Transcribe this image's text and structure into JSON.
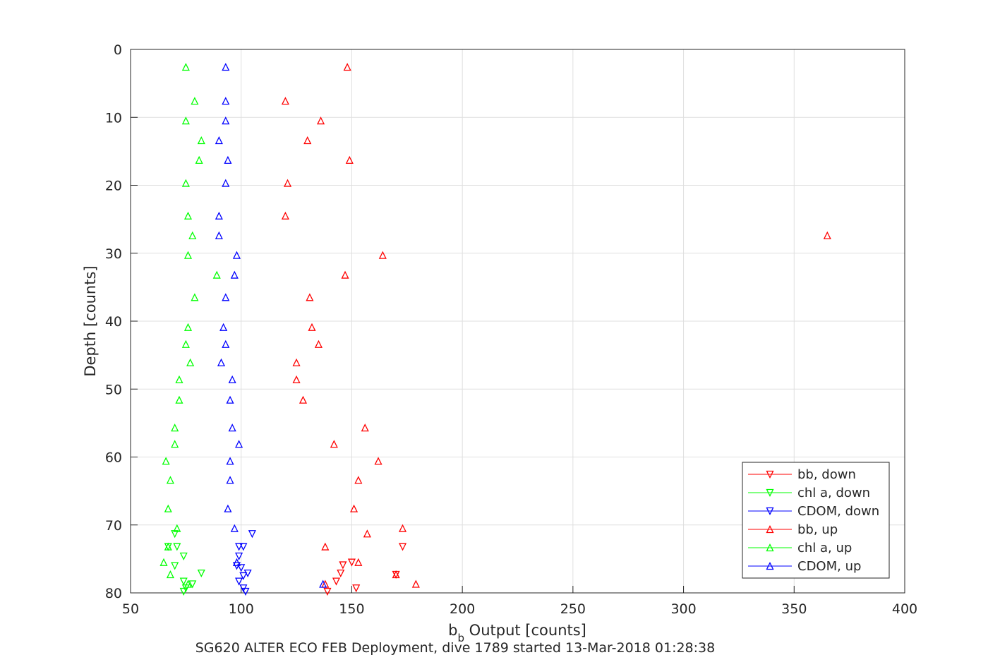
{
  "chart_data": {
    "type": "scatter",
    "title": "",
    "xlabel": "b",
    "xlabel_sub": "b",
    "xlabel_rest": " Output [counts]",
    "ylabel": "Depth [counts]",
    "caption": "SG620 ALTER ECO FEB Deployment, dive 1789 started 13-Mar-2018 01:28:38",
    "xlim": [
      50,
      400
    ],
    "ylim": [
      0,
      80
    ],
    "y_reversed": true,
    "grid": true,
    "legend_position": "bottom-right",
    "x_ticks": [
      "50",
      "100",
      "150",
      "200",
      "250",
      "300",
      "350",
      "400"
    ],
    "y_ticks": [
      "0",
      "10",
      "20",
      "30",
      "40",
      "50",
      "60",
      "70",
      "80"
    ],
    "series": [
      {
        "name": "bb, down",
        "color": "#ff0000",
        "marker": "triangle-down",
        "points": [
          [
            173,
            73.2
          ],
          [
            150,
            75.5
          ],
          [
            146,
            75.9
          ],
          [
            145,
            77.1
          ],
          [
            170,
            77.3
          ],
          [
            143,
            78.3
          ],
          [
            152,
            79.3
          ],
          [
            139,
            79.8
          ]
        ]
      },
      {
        "name": "chl a, down",
        "color": "#00ff00",
        "marker": "triangle-down",
        "points": [
          [
            70,
            71.3
          ],
          [
            71,
            73.2
          ],
          [
            67,
            73.2
          ],
          [
            74,
            74.6
          ],
          [
            70,
            76.0
          ],
          [
            82,
            77.1
          ],
          [
            74,
            78.3
          ],
          [
            78,
            78.7
          ],
          [
            75,
            79.3
          ],
          [
            74,
            79.8
          ]
        ]
      },
      {
        "name": "CDOM, down",
        "color": "#0000ff",
        "marker": "triangle-down",
        "points": [
          [
            105,
            71.3
          ],
          [
            99,
            73.2
          ],
          [
            101,
            73.2
          ],
          [
            99,
            74.6
          ],
          [
            98,
            76.0
          ],
          [
            100,
            76.3
          ],
          [
            103,
            77.1
          ],
          [
            101,
            77.5
          ],
          [
            99,
            78.3
          ],
          [
            101,
            79.3
          ],
          [
            102,
            79.8
          ]
        ]
      },
      {
        "name": "bb, up",
        "color": "#ff0000",
        "marker": "triangle-up",
        "points": [
          [
            148,
            2.6
          ],
          [
            120,
            7.6
          ],
          [
            136,
            10.5
          ],
          [
            130,
            13.4
          ],
          [
            149,
            16.3
          ],
          [
            121,
            19.7
          ],
          [
            120,
            24.5
          ],
          [
            365,
            27.4
          ],
          [
            164,
            30.3
          ],
          [
            147,
            33.2
          ],
          [
            131,
            36.5
          ],
          [
            132,
            40.9
          ],
          [
            135,
            43.4
          ],
          [
            125,
            46.1
          ],
          [
            125,
            48.6
          ],
          [
            128,
            51.6
          ],
          [
            156,
            55.7
          ],
          [
            142,
            58.1
          ],
          [
            162,
            60.6
          ],
          [
            153,
            63.4
          ],
          [
            151,
            67.6
          ],
          [
            157,
            71.3
          ],
          [
            173,
            70.5
          ],
          [
            138,
            73.2
          ],
          [
            153,
            75.5
          ],
          [
            170,
            77.3
          ],
          [
            179,
            78.7
          ],
          [
            138,
            78.7
          ]
        ]
      },
      {
        "name": "chl a, up",
        "color": "#00ff00",
        "marker": "triangle-up",
        "points": [
          [
            75,
            2.6
          ],
          [
            79,
            7.6
          ],
          [
            75,
            10.5
          ],
          [
            82,
            13.4
          ],
          [
            81,
            16.3
          ],
          [
            75,
            19.7
          ],
          [
            76,
            24.5
          ],
          [
            78,
            27.4
          ],
          [
            76,
            30.3
          ],
          [
            89,
            33.2
          ],
          [
            79,
            36.5
          ],
          [
            76,
            40.9
          ],
          [
            75,
            43.4
          ],
          [
            77,
            46.1
          ],
          [
            72,
            48.6
          ],
          [
            72,
            51.6
          ],
          [
            70,
            55.7
          ],
          [
            70,
            58.1
          ],
          [
            66,
            60.6
          ],
          [
            68,
            63.4
          ],
          [
            67,
            67.6
          ],
          [
            71,
            70.5
          ],
          [
            67,
            73.2
          ],
          [
            65,
            75.5
          ],
          [
            68,
            77.3
          ],
          [
            76,
            78.7
          ]
        ]
      },
      {
        "name": "CDOM, up",
        "color": "#0000ff",
        "marker": "triangle-up",
        "points": [
          [
            93,
            2.6
          ],
          [
            93,
            7.6
          ],
          [
            93,
            10.5
          ],
          [
            90,
            13.4
          ],
          [
            94,
            16.3
          ],
          [
            93,
            19.7
          ],
          [
            90,
            24.5
          ],
          [
            90,
            27.4
          ],
          [
            98,
            30.3
          ],
          [
            97,
            33.2
          ],
          [
            93,
            36.5
          ],
          [
            92,
            40.9
          ],
          [
            93,
            43.4
          ],
          [
            91,
            46.1
          ],
          [
            96,
            48.6
          ],
          [
            95,
            51.6
          ],
          [
            96,
            55.7
          ],
          [
            99,
            58.1
          ],
          [
            95,
            60.6
          ],
          [
            95,
            63.4
          ],
          [
            94,
            67.6
          ],
          [
            97,
            70.5
          ],
          [
            98,
            75.5
          ],
          [
            137,
            78.7
          ]
        ]
      }
    ]
  }
}
